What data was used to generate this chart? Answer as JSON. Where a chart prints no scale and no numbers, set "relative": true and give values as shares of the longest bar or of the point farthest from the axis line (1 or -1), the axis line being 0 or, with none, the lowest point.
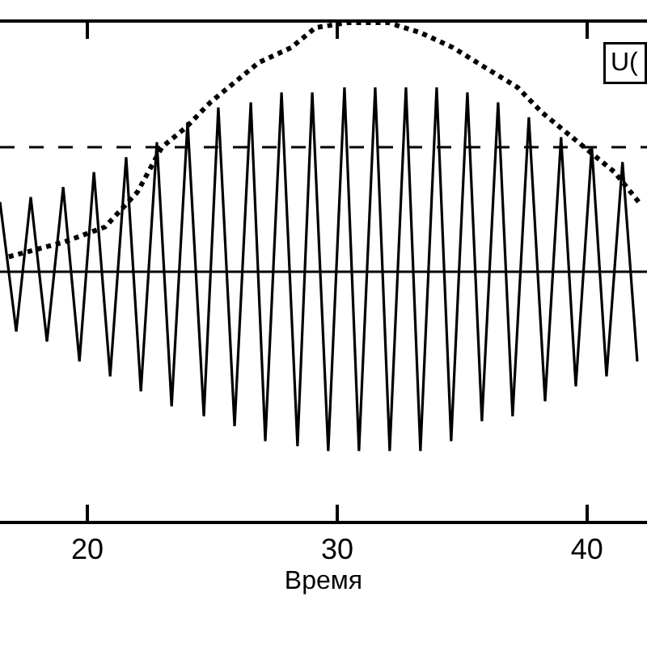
{
  "chart_data": {
    "type": "line",
    "relative": true,
    "xlabel": "Время",
    "xlim": [
      16.5,
      42.4
    ],
    "xticks": [
      20,
      30,
      40
    ],
    "tick_labels": "x",
    "annotations": [
      "U("
    ],
    "ref_lines": [
      {
        "axis": "y",
        "value": 0.75,
        "color": "#000000",
        "line_style": "dashed"
      },
      {
        "axis": "y",
        "value": 0.5,
        "color": "#000000",
        "line_style": "solid"
      }
    ],
    "series": [
      {
        "color": "#000000",
        "line_style": "solid",
        "x": [
          16.5,
          17.15,
          17.73,
          18.38,
          19.03,
          19.68,
          20.26,
          20.91,
          21.55,
          22.14,
          22.78,
          23.37,
          24.01,
          24.66,
          25.24,
          25.89,
          26.54,
          27.12,
          27.77,
          28.41,
          29.0,
          29.64,
          30.29,
          30.87,
          31.52,
          32.1,
          32.75,
          33.33,
          33.98,
          34.56,
          35.21,
          35.79,
          36.44,
          37.02,
          37.67,
          38.32,
          38.96,
          39.55,
          40.19,
          40.78,
          41.42,
          42.01
        ],
        "values": [
          0.64,
          0.38,
          0.65,
          0.36,
          0.67,
          0.32,
          0.7,
          0.29,
          0.73,
          0.26,
          0.76,
          0.23,
          0.8,
          0.21,
          0.83,
          0.19,
          0.84,
          0.16,
          0.86,
          0.15,
          0.86,
          0.14,
          0.87,
          0.14,
          0.87,
          0.14,
          0.87,
          0.14,
          0.87,
          0.16,
          0.86,
          0.2,
          0.84,
          0.21,
          0.81,
          0.24,
          0.77,
          0.27,
          0.75,
          0.29,
          0.72,
          0.32
        ]
      },
      {
        "color": "#000000",
        "line_style": "dotted",
        "x": [
          16.85,
          19.09,
          20.71,
          22.0,
          22.98,
          23.95,
          24.92,
          25.89,
          26.86,
          28.16,
          29.13,
          30.42,
          32.04,
          33.33,
          34.63,
          35.92,
          37.22,
          38.19,
          39.16,
          40.13,
          41.1,
          42.07
        ],
        "values": [
          0.53,
          0.56,
          0.59,
          0.66,
          0.75,
          0.79,
          0.84,
          0.88,
          0.92,
          0.95,
          0.99,
          1.0,
          1.0,
          0.98,
          0.95,
          0.91,
          0.87,
          0.82,
          0.78,
          0.74,
          0.7,
          0.64
        ]
      }
    ]
  }
}
